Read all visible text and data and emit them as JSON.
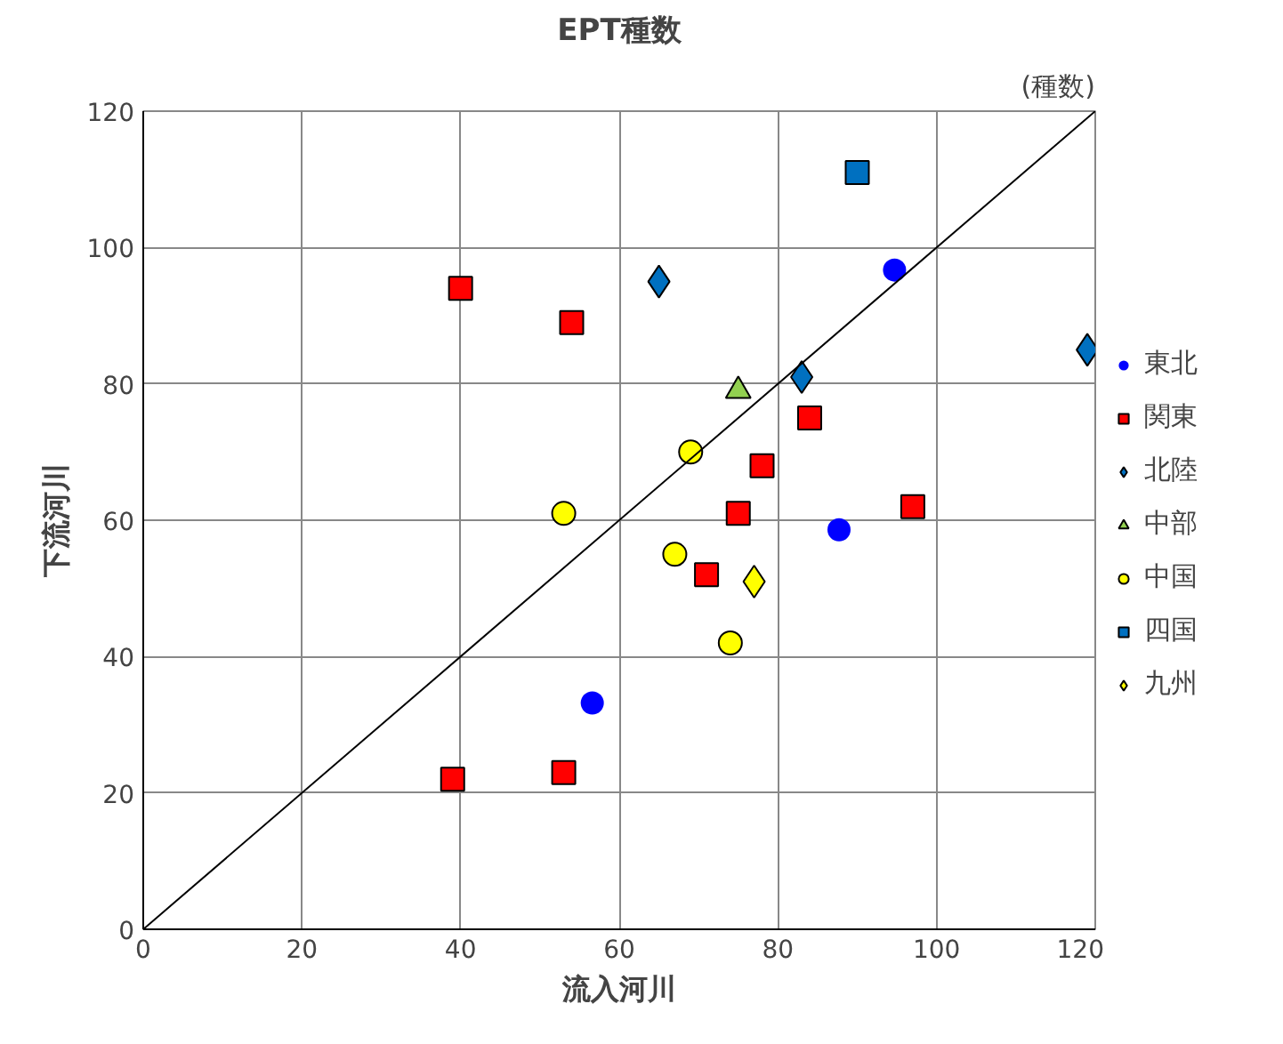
{
  "chart_data": {
    "type": "scatter",
    "title": "EPT種数",
    "xlabel": "流入河川",
    "ylabel": "下流河川",
    "annotations": [
      "(種数)"
    ],
    "xlim": [
      0,
      120
    ],
    "ylim": [
      0,
      120
    ],
    "xticks": [
      0,
      20,
      40,
      60,
      80,
      100,
      120
    ],
    "yticks": [
      0,
      20,
      40,
      60,
      80,
      100,
      120
    ],
    "grid": true,
    "legend": "right",
    "series": [
      {
        "name": "東北",
        "color": "#0000ff",
        "marker": "circle",
        "x": [
          94.7,
          87.7,
          56.6
        ],
        "values": [
          96.7,
          58.6,
          33.2
        ]
      },
      {
        "name": "関東",
        "color": "#ff0000",
        "marker": "square",
        "x": [
          40,
          54,
          84,
          78,
          75,
          97,
          71,
          39,
          53
        ],
        "values": [
          94,
          89,
          75,
          68,
          61,
          62,
          52,
          22,
          23
        ]
      },
      {
        "name": "北陸",
        "color": "#0070c0",
        "marker": "diamond",
        "x": [
          65,
          83,
          119
        ],
        "values": [
          95,
          81,
          85
        ]
      },
      {
        "name": "中部",
        "color": "#92d050",
        "marker": "triangle",
        "x": [
          75
        ],
        "values": [
          79
        ]
      },
      {
        "name": "中国",
        "color": "#ffff00",
        "marker": "circle",
        "x": [
          69,
          53,
          67,
          74
        ],
        "values": [
          70,
          61,
          55,
          42
        ]
      },
      {
        "name": "四国",
        "color": "#0070c0",
        "marker": "square",
        "x": [
          90
        ],
        "values": [
          111
        ]
      },
      {
        "name": "九州",
        "color": "#ffff00",
        "marker": "diamond",
        "x": [
          77
        ],
        "values": [
          51
        ]
      },
      {
        "type": "line",
        "color": "#000000",
        "x": [
          0,
          120
        ],
        "values": [
          0,
          120
        ]
      }
    ]
  }
}
